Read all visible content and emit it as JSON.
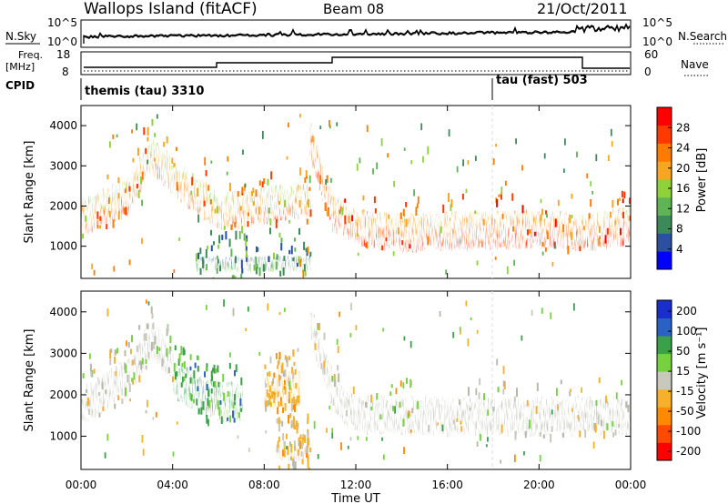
{
  "header": {
    "title": "Wallops Island (fitACF)",
    "beam": "Beam 08",
    "date": "21/Oct/2011"
  },
  "noise_panel": {
    "left_label": "N.Sky",
    "left_ticks": [
      "10^5",
      "10^0"
    ],
    "right_label": "N.Search",
    "right_ticks": [
      "10^5",
      "10^0"
    ]
  },
  "freq_panel": {
    "left_label_1": "Freq.",
    "left_label_2": "[MHz]",
    "left_ticks": [
      "18",
      "8"
    ],
    "right_label": "Nave",
    "right_ticks": [
      "60",
      "0"
    ]
  },
  "cpid_panel": {
    "label": "CPID",
    "modes": [
      "themis (tau) 3310",
      "tau (fast) 503"
    ]
  },
  "colors": {
    "power_scale": [
      "#0000ff",
      "#2d4fa0",
      "#3c8a5a",
      "#5fb455",
      "#8fd13a",
      "#f5a623",
      "#ff7a00",
      "#ff3a00",
      "#ff0000"
    ],
    "velocity_scale": [
      "#1a2fc9",
      "#2a62c4",
      "#3aa04a",
      "#77d040",
      "#c8c8bc",
      "#f7b02c",
      "#ff8a00",
      "#ff4a00",
      "#ff0000"
    ],
    "ground_scatter": "#b8b8ac"
  },
  "chart_data": [
    {
      "type": "heatmap",
      "panel": "power",
      "ylabel": "Slant Range [km]",
      "xlim": [
        "00:00",
        "24:00"
      ],
      "ylim": [
        200,
        4500
      ],
      "yticks": [
        "1000",
        "2000",
        "3000",
        "4000"
      ],
      "colorbar": {
        "label": "Power [dB]",
        "ticks": [
          "28",
          "24",
          "20",
          "16",
          "12",
          "8",
          "4"
        ],
        "range": [
          0,
          32
        ]
      },
      "echo_bands": [
        {
          "hours": [
            0,
            2,
            3,
            4,
            6,
            8,
            10
          ],
          "range_km": [
            1700,
            2200,
            3300,
            2700,
            1800,
            2000,
            2100
          ],
          "power_db": 22
        },
        {
          "hours": [
            10,
            10.5,
            11,
            12,
            14,
            16,
            20,
            22,
            24
          ],
          "range_km": [
            3600,
            2600,
            1800,
            1450,
            1300,
            1350,
            1400,
            1300,
            1500
          ],
          "power_db": 26
        },
        {
          "hours": [
            5,
            10
          ],
          "range_km": [
            550,
            550
          ],
          "power_db": 10
        }
      ]
    },
    {
      "type": "heatmap",
      "panel": "velocity",
      "ylabel": "Slant Range [km]",
      "xlabel": "Time UT",
      "xticks": [
        "00:00",
        "04:00",
        "08:00",
        "12:00",
        "16:00",
        "20:00",
        "00:00"
      ],
      "xlim": [
        "00:00",
        "24:00"
      ],
      "ylim": [
        200,
        4500
      ],
      "yticks": [
        "1000",
        "2000",
        "3000",
        "4000"
      ],
      "colorbar": {
        "label": "Velocity [m s⁻¹]",
        "ticks": [
          "200",
          "100",
          "50",
          "15",
          "-15",
          "-50",
          "-100",
          "-200"
        ],
        "range": [
          -250,
          250
        ]
      },
      "echo_bands": [
        {
          "hours": [
            0,
            2,
            3,
            4
          ],
          "range_km": [
            1700,
            2400,
            3300,
            2700
          ],
          "velocity": 0
        },
        {
          "hours": [
            4,
            5,
            6,
            7
          ],
          "range_km": [
            2400,
            2000,
            1800,
            1800
          ],
          "velocity": 120
        },
        {
          "hours": [
            8,
            9.5
          ],
          "range_km": [
            2000,
            2200
          ],
          "velocity": -60
        },
        {
          "hours": [
            10,
            11,
            12,
            16,
            20,
            24
          ],
          "range_km": [
            3600,
            2000,
            1500,
            1450,
            1450,
            1500
          ],
          "velocity": 0
        },
        {
          "hours": [
            8.5,
            10
          ],
          "range_km": [
            600,
            600
          ],
          "velocity": -40
        }
      ]
    }
  ]
}
